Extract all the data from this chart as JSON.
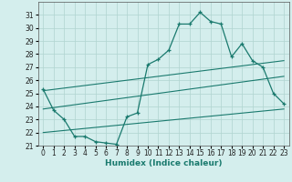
{
  "xlabel": "Humidex (Indice chaleur)",
  "xlim": [
    -0.5,
    23.5
  ],
  "ylim": [
    21,
    32
  ],
  "yticks": [
    21,
    22,
    23,
    24,
    25,
    26,
    27,
    28,
    29,
    30,
    31
  ],
  "xticks": [
    0,
    1,
    2,
    3,
    4,
    5,
    6,
    7,
    8,
    9,
    10,
    11,
    12,
    13,
    14,
    15,
    16,
    17,
    18,
    19,
    20,
    21,
    22,
    23
  ],
  "bg_color": "#d4eeed",
  "line_color": "#1a7a6e",
  "grid_color": "#b0d4d0",
  "main_curve": {
    "x": [
      0,
      1,
      2,
      3,
      4,
      5,
      6,
      7,
      8,
      9,
      10,
      11,
      12,
      13,
      14,
      15,
      16,
      17,
      18,
      19,
      20,
      21,
      22,
      23
    ],
    "y": [
      25.3,
      23.7,
      23.0,
      21.7,
      21.7,
      21.3,
      21.2,
      21.1,
      23.2,
      23.5,
      27.2,
      27.6,
      28.3,
      30.3,
      30.3,
      31.2,
      30.5,
      30.3,
      27.8,
      28.8,
      27.5,
      27.0,
      25.0,
      24.2
    ]
  },
  "line1": {
    "x": [
      0,
      23
    ],
    "y": [
      25.2,
      27.5
    ]
  },
  "line2": {
    "x": [
      0,
      23
    ],
    "y": [
      23.8,
      26.3
    ]
  },
  "line3": {
    "x": [
      0,
      23
    ],
    "y": [
      22.0,
      23.8
    ]
  }
}
